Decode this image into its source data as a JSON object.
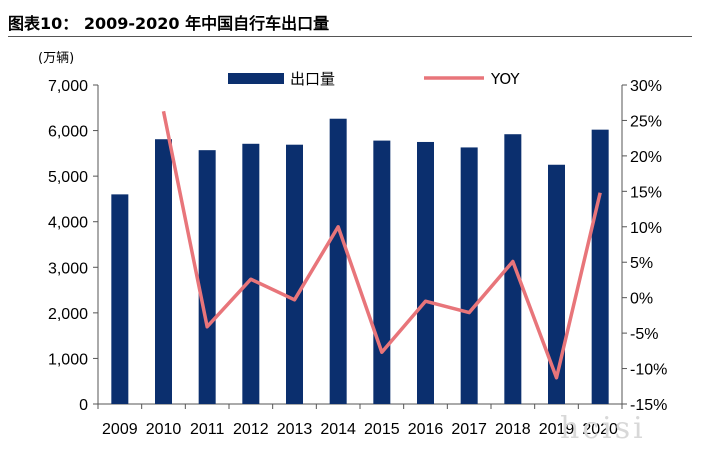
{
  "title": "图表10：   2009-2020 年中国自行车出口量",
  "watermark": "hcisi",
  "colors": {
    "bar": "#0b2f6e",
    "line": "#e8757a"
  },
  "chart_data": {
    "type": "bar+line",
    "unit_label": "(万辆)",
    "categories": [
      "2009",
      "2010",
      "2011",
      "2012",
      "2013",
      "2014",
      "2015",
      "2016",
      "2017",
      "2018",
      "2019",
      "2020"
    ],
    "series": [
      {
        "name": "出口量",
        "type": "bar",
        "axis": "left",
        "values": [
          4600,
          5810,
          5570,
          5710,
          5690,
          6260,
          5780,
          5750,
          5630,
          5920,
          5250,
          6020
        ]
      },
      {
        "name": "YOY",
        "type": "line",
        "axis": "right",
        "values": [
          null,
          26.3,
          -4.1,
          2.6,
          -0.3,
          10.0,
          -7.7,
          -0.5,
          -2.1,
          5.1,
          -11.3,
          14.8
        ]
      }
    ],
    "y_left": {
      "min": 0,
      "max": 7000,
      "step": 1000,
      "tick_labels": [
        "0",
        "1,000",
        "2,000",
        "3,000",
        "4,000",
        "5,000",
        "6,000",
        "7,000"
      ]
    },
    "y_right": {
      "min": -15,
      "max": 30,
      "step": 5,
      "tick_labels": [
        "-15%",
        "-10%",
        "-5%",
        "0%",
        "5%",
        "10%",
        "15%",
        "20%",
        "25%",
        "30%"
      ]
    },
    "legend": {
      "placement": "top"
    },
    "grid": false
  }
}
